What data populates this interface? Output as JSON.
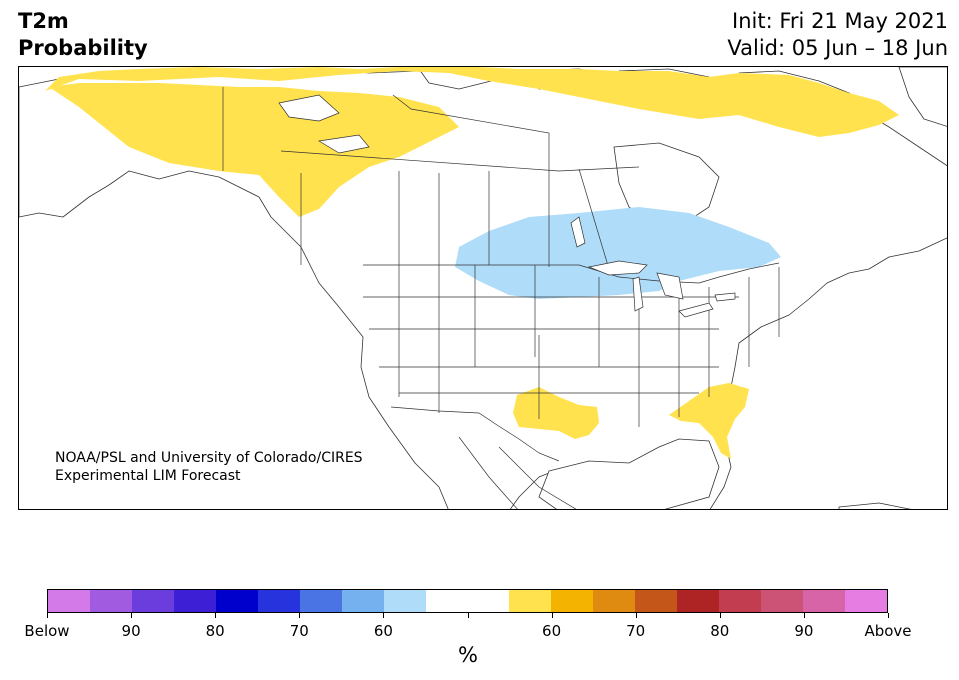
{
  "header": {
    "title_line1": "T2m",
    "title_line2": "Probability",
    "init_text": "Init: Fri 21 May 2021",
    "valid_text": "Valid: 05 Jun – 18 Jun"
  },
  "map": {
    "credit_line1": "NOAA/PSL and University of Colorado/CIRES",
    "credit_line2": "Experimental LIM Forecast",
    "land_color": "#ffffff",
    "border_color": "#333333",
    "regions": [
      {
        "name": "northern-canada-alaska-above",
        "category": "Above",
        "level": "55-60",
        "color": "#ffe24d"
      },
      {
        "name": "canadian-arctic-islands-above",
        "category": "Above",
        "level": "55-60",
        "color": "#ffe24d"
      },
      {
        "name": "great-lakes-hudson-below",
        "category": "Below",
        "level": "55-60",
        "color": "#aedcf9"
      },
      {
        "name": "texas-above",
        "category": "Above",
        "level": "55-60",
        "color": "#ffe24d"
      },
      {
        "name": "southeast-us-above",
        "category": "Above",
        "level": "55-60",
        "color": "#ffe24d"
      }
    ]
  },
  "colorbar": {
    "unit_label": "%",
    "colors": [
      "#d479e8",
      "#a05be0",
      "#6a3ddc",
      "#3d1fd6",
      "#0000cc",
      "#2733dd",
      "#4a74e4",
      "#76b1ef",
      "#aedcf9",
      "#ffffff",
      "#ffffff",
      "#ffe24d",
      "#f3b300",
      "#df8a10",
      "#c5561a",
      "#ae2424",
      "#c23d50",
      "#cc5276",
      "#d764a6",
      "#e57de2"
    ],
    "tick_labels": [
      "Below",
      "90",
      "80",
      "70",
      "60",
      "",
      "60",
      "70",
      "80",
      "90",
      "Above"
    ]
  }
}
